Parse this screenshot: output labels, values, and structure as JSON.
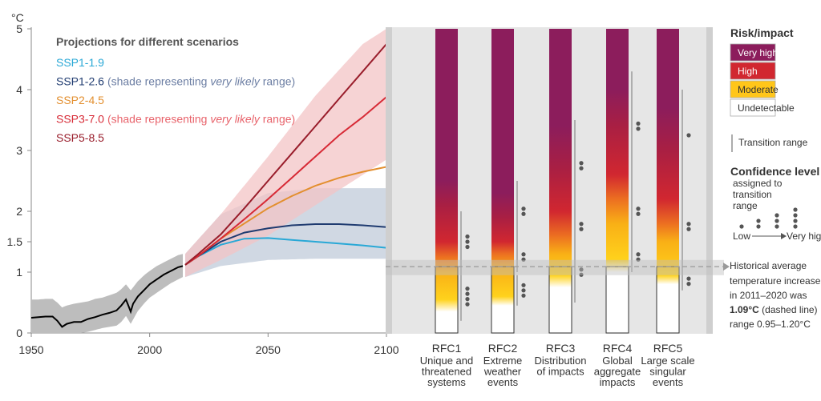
{
  "chart_data": [
    {
      "type": "line",
      "unit_label": "°C",
      "legend_title": "Projections for different scenarios",
      "x_ticks": [
        "1950",
        "2000",
        "2050",
        "2100"
      ],
      "y_ticks": [
        "0",
        "1",
        "1.5",
        "2",
        "3",
        "4",
        "5"
      ],
      "xlim": [
        1950,
        2100
      ],
      "ylim": [
        0,
        5
      ],
      "legend_placement": "top-left",
      "grid": false,
      "historical": {
        "color": "#000000",
        "band_color": "#bdbdbd",
        "points": [
          [
            1950,
            0.25
          ],
          [
            1953,
            0.26
          ],
          [
            1956,
            0.27
          ],
          [
            1959,
            0.27
          ],
          [
            1961,
            0.2
          ],
          [
            1963,
            0.1
          ],
          [
            1965,
            0.15
          ],
          [
            1968,
            0.18
          ],
          [
            1971,
            0.18
          ],
          [
            1974,
            0.23
          ],
          [
            1977,
            0.26
          ],
          [
            1980,
            0.3
          ],
          [
            1983,
            0.33
          ],
          [
            1986,
            0.37
          ],
          [
            1988,
            0.45
          ],
          [
            1990,
            0.55
          ],
          [
            1991,
            0.45
          ],
          [
            1992,
            0.35
          ],
          [
            1993,
            0.48
          ],
          [
            1995,
            0.6
          ],
          [
            1998,
            0.72
          ],
          [
            2000,
            0.8
          ],
          [
            2003,
            0.88
          ],
          [
            2006,
            0.96
          ],
          [
            2009,
            1.02
          ],
          [
            2012,
            1.08
          ],
          [
            2014,
            1.1
          ]
        ],
        "band_upper": [
          [
            1950,
            0.55
          ],
          [
            1953,
            0.55
          ],
          [
            1956,
            0.56
          ],
          [
            1959,
            0.56
          ],
          [
            1961,
            0.5
          ],
          [
            1963,
            0.42
          ],
          [
            1965,
            0.45
          ],
          [
            1968,
            0.48
          ],
          [
            1971,
            0.5
          ],
          [
            1974,
            0.52
          ],
          [
            1977,
            0.56
          ],
          [
            1980,
            0.58
          ],
          [
            1983,
            0.62
          ],
          [
            1986,
            0.66
          ],
          [
            1988,
            0.72
          ],
          [
            1990,
            0.8
          ],
          [
            1992,
            0.7
          ],
          [
            1995,
            0.85
          ],
          [
            1998,
            0.96
          ],
          [
            2000,
            1.02
          ],
          [
            2003,
            1.1
          ],
          [
            2006,
            1.16
          ],
          [
            2009,
            1.22
          ],
          [
            2012,
            1.28
          ],
          [
            2014,
            1.3
          ]
        ],
        "band_lower": [
          [
            1950,
            0.0
          ],
          [
            1953,
            0.0
          ],
          [
            1956,
            0.0
          ],
          [
            1959,
            0.0
          ],
          [
            1961,
            0.0
          ],
          [
            1963,
            0.0
          ],
          [
            1965,
            0.0
          ],
          [
            1968,
            0.0
          ],
          [
            1971,
            0.0
          ],
          [
            1974,
            0.02
          ],
          [
            1977,
            0.05
          ],
          [
            1980,
            0.08
          ],
          [
            1983,
            0.1
          ],
          [
            1986,
            0.12
          ],
          [
            1988,
            0.18
          ],
          [
            1990,
            0.28
          ],
          [
            1992,
            0.15
          ],
          [
            1995,
            0.36
          ],
          [
            1998,
            0.5
          ],
          [
            2000,
            0.58
          ],
          [
            2003,
            0.66
          ],
          [
            2006,
            0.74
          ],
          [
            2009,
            0.82
          ],
          [
            2012,
            0.88
          ],
          [
            2014,
            0.92
          ]
        ]
      },
      "series": [
        {
          "name": "SSP1-1.9",
          "color": "#29a8d6",
          "points": [
            [
              2015,
              1.12
            ],
            [
              2020,
              1.25
            ],
            [
              2030,
              1.45
            ],
            [
              2040,
              1.55
            ],
            [
              2050,
              1.56
            ],
            [
              2060,
              1.53
            ],
            [
              2070,
              1.5
            ],
            [
              2080,
              1.47
            ],
            [
              2090,
              1.44
            ],
            [
              2100,
              1.4
            ]
          ]
        },
        {
          "name": "SSP1-2.6",
          "annotation_before": "(shade representing ",
          "annotation_italic": "very likely",
          "annotation_after": " range)",
          "annotation_color": "#6d7fa4",
          "color": "#1f3b70",
          "band_color": "#c8d1de",
          "points": [
            [
              2015,
              1.12
            ],
            [
              2020,
              1.25
            ],
            [
              2030,
              1.5
            ],
            [
              2040,
              1.65
            ],
            [
              2050,
              1.72
            ],
            [
              2060,
              1.77
            ],
            [
              2070,
              1.79
            ],
            [
              2080,
              1.79
            ],
            [
              2090,
              1.77
            ],
            [
              2100,
              1.74
            ]
          ],
          "band_upper": [
            [
              2015,
              1.3
            ],
            [
              2030,
              1.95
            ],
            [
              2050,
              2.3
            ],
            [
              2070,
              2.38
            ],
            [
              2100,
              2.38
            ]
          ],
          "band_lower": [
            [
              2015,
              0.92
            ],
            [
              2030,
              1.1
            ],
            [
              2050,
              1.2
            ],
            [
              2070,
              1.22
            ],
            [
              2100,
              1.22
            ]
          ]
        },
        {
          "name": "SSP2-4.5",
          "color": "#e38f2f",
          "points": [
            [
              2015,
              1.12
            ],
            [
              2020,
              1.25
            ],
            [
              2030,
              1.55
            ],
            [
              2040,
              1.8
            ],
            [
              2050,
              2.05
            ],
            [
              2060,
              2.25
            ],
            [
              2070,
              2.42
            ],
            [
              2080,
              2.55
            ],
            [
              2090,
              2.65
            ],
            [
              2100,
              2.73
            ]
          ]
        },
        {
          "name": "SSP3-7.0",
          "annotation_before": "(shade representing ",
          "annotation_italic": "very likely",
          "annotation_after": " range)",
          "annotation_color": "#e8636b",
          "color": "#d72a36",
          "band_color": "#f3c4c6",
          "points": [
            [
              2015,
              1.12
            ],
            [
              2020,
              1.25
            ],
            [
              2030,
              1.55
            ],
            [
              2040,
              1.87
            ],
            [
              2050,
              2.2
            ],
            [
              2060,
              2.55
            ],
            [
              2070,
              2.9
            ],
            [
              2080,
              3.25
            ],
            [
              2090,
              3.55
            ],
            [
              2100,
              3.88
            ]
          ],
          "band_upper": [
            [
              2015,
              1.3
            ],
            [
              2030,
              1.95
            ],
            [
              2050,
              2.9
            ],
            [
              2070,
              3.9
            ],
            [
              2090,
              4.75
            ],
            [
              2100,
              5.0
            ]
          ],
          "band_lower": [
            [
              2015,
              0.92
            ],
            [
              2030,
              1.2
            ],
            [
              2050,
              1.6
            ],
            [
              2070,
              2.1
            ],
            [
              2090,
              2.6
            ],
            [
              2100,
              2.85
            ]
          ]
        },
        {
          "name": "SSP5-8.5",
          "color": "#991d2b",
          "points": [
            [
              2015,
              1.12
            ],
            [
              2020,
              1.28
            ],
            [
              2030,
              1.62
            ],
            [
              2040,
              2.05
            ],
            [
              2050,
              2.5
            ],
            [
              2060,
              2.95
            ],
            [
              2070,
              3.4
            ],
            [
              2080,
              3.85
            ],
            [
              2090,
              4.3
            ],
            [
              2100,
              4.75
            ]
          ]
        }
      ]
    },
    {
      "type": "heatmap",
      "legend_title": "Risk/impact",
      "risk_levels": [
        {
          "label": "Very high",
          "color": "#8c1d5c"
        },
        {
          "label": "High",
          "color": "#d12730"
        },
        {
          "label": "Moderate",
          "color": "#ffc61a"
        },
        {
          "label": "Undetectable",
          "color": "#ffffff"
        }
      ],
      "transition_label": "Transition range",
      "confidence_title": "Confidence level",
      "confidence_subtitle": [
        "assigned to",
        "transition",
        "range"
      ],
      "confidence_low": "Low",
      "confidence_high": "Very high",
      "historical_note": {
        "line1": "Historical average",
        "line2": "temperature increase",
        "line3": "in 2011–2020 was",
        "bold_value": "1.09°C",
        "after_bold": " (dashed line)",
        "line5": "range 0.95–1.20°C",
        "value": 1.09,
        "range": [
          0.95,
          1.2
        ]
      },
      "rfcs": [
        {
          "id": "RFC1",
          "label_lines": [
            "Unique and",
            "threatened",
            "systems"
          ],
          "gradient_stops": [
            [
              0.35,
              "#ffffff"
            ],
            [
              0.55,
              "#ffd21c"
            ],
            [
              1.0,
              "#f9b016"
            ],
            [
              1.25,
              "#ec6f21"
            ],
            [
              1.5,
              "#d12730"
            ],
            [
              2.1,
              "#a91f43"
            ],
            [
              2.5,
              "#8c1d5c"
            ]
          ],
          "transitions": [
            {
              "from": 0.2,
              "to": 1.0,
              "dots": 4
            },
            {
              "from": 1.0,
              "to": 2.0,
              "dots": 3
            }
          ]
        },
        {
          "id": "RFC2",
          "label_lines": [
            "Extreme",
            "weather",
            "events"
          ],
          "gradient_stops": [
            [
              0.45,
              "#ffffff"
            ],
            [
              0.6,
              "#ffd21c"
            ],
            [
              1.05,
              "#f9b016"
            ],
            [
              1.3,
              "#ec6f21"
            ],
            [
              1.5,
              "#d12730"
            ],
            [
              1.9,
              "#a91f43"
            ],
            [
              2.3,
              "#8c1d5c"
            ]
          ],
          "transitions": [
            {
              "from": 0.45,
              "to": 0.95,
              "dots": 3
            },
            {
              "from": 1.0,
              "to": 1.5,
              "dots": 2
            },
            {
              "from": 1.5,
              "to": 2.5,
              "dots": 2
            }
          ]
        },
        {
          "id": "RFC3",
          "label_lines": [
            "Distribution",
            "of impacts"
          ],
          "gradient_stops": [
            [
              0.75,
              "#ffffff"
            ],
            [
              0.95,
              "#ffd21c"
            ],
            [
              1.3,
              "#f9b016"
            ],
            [
              1.6,
              "#ec6f21"
            ],
            [
              2.0,
              "#d12730"
            ],
            [
              2.7,
              "#a91f43"
            ],
            [
              3.4,
              "#8c1d5c"
            ]
          ],
          "transitions": [
            {
              "from": 0.5,
              "to": 1.5,
              "dots": 2
            },
            {
              "from": 1.5,
              "to": 2.0,
              "dots": 2
            },
            {
              "from": 2.0,
              "to": 3.5,
              "dots": 2
            }
          ]
        },
        {
          "id": "RFC4",
          "label_lines": [
            "Global",
            "aggregate",
            "impacts"
          ],
          "gradient_stops": [
            [
              1.0,
              "#ffffff"
            ],
            [
              1.2,
              "#ffd21c"
            ],
            [
              1.8,
              "#f9b016"
            ],
            [
              2.2,
              "#ec6f21"
            ],
            [
              2.6,
              "#d12730"
            ],
            [
              3.4,
              "#a91f43"
            ],
            [
              4.0,
              "#8c1d5c"
            ]
          ],
          "transitions": [
            {
              "from": 1.0,
              "to": 1.5,
              "dots": 2
            },
            {
              "from": 1.5,
              "to": 2.5,
              "dots": 2
            },
            {
              "from": 2.5,
              "to": 4.3,
              "dots": 2
            }
          ]
        },
        {
          "id": "RFC5",
          "label_lines": [
            "Large scale",
            "singular",
            "events"
          ],
          "gradient_stops": [
            [
              0.8,
              "#ffffff"
            ],
            [
              0.95,
              "#ffd21c"
            ],
            [
              1.5,
              "#f9b016"
            ],
            [
              1.8,
              "#ec6f21"
            ],
            [
              2.2,
              "#d12730"
            ],
            [
              3.0,
              "#a91f43"
            ],
            [
              3.7,
              "#8c1d5c"
            ]
          ],
          "transitions": [
            {
              "from": 0.7,
              "to": 1.0,
              "dots": 2
            },
            {
              "from": 1.0,
              "to": 2.5,
              "dots": 2
            },
            {
              "from": 2.5,
              "to": 4.0,
              "dots": 1
            }
          ]
        }
      ]
    }
  ]
}
